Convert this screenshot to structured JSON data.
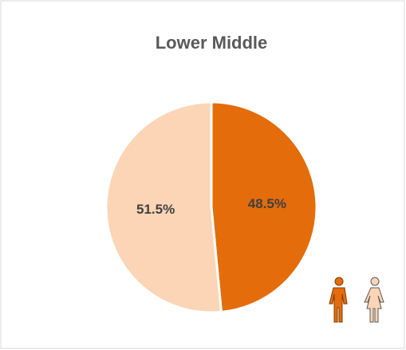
{
  "chart_data": {
    "type": "pie",
    "title": "Lower Middle",
    "values": [
      48.5,
      51.5
    ],
    "value_labels": [
      "48.5%",
      "51.5%"
    ],
    "colors": [
      "#e46c0a",
      "#fbd5b5"
    ]
  }
}
